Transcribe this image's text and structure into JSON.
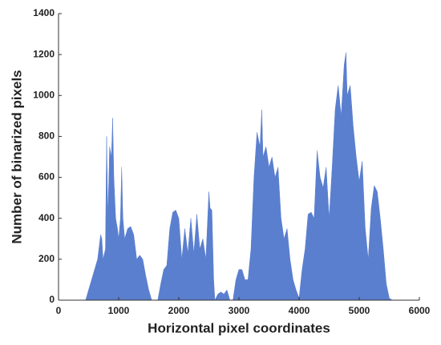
{
  "chart_data": {
    "type": "area",
    "xlabel": "Horizontal pixel coordinates",
    "ylabel": "Number of binarized pixels",
    "color": "#5b7fcf",
    "xlim": [
      0,
      6000
    ],
    "xticks": [
      0,
      1000,
      2000,
      3000,
      4000,
      5000,
      6000
    ],
    "ylim": [
      0,
      1400
    ],
    "yticks": [
      0,
      200,
      400,
      600,
      800,
      1000,
      1200,
      1400
    ],
    "x": [
      450,
      500,
      550,
      600,
      650,
      700,
      720,
      740,
      780,
      800,
      820,
      850,
      880,
      900,
      920,
      950,
      980,
      1000,
      1030,
      1050,
      1070,
      1100,
      1150,
      1200,
      1250,
      1300,
      1350,
      1400,
      1450,
      1500,
      1550,
      1650,
      1700,
      1750,
      1800,
      1850,
      1900,
      1950,
      2000,
      2050,
      2100,
      2150,
      2200,
      2250,
      2300,
      2350,
      2400,
      2450,
      2500,
      2520,
      2550,
      2580,
      2600,
      2650,
      2700,
      2750,
      2800,
      2850,
      2900,
      2950,
      3000,
      3050,
      3100,
      3150,
      3200,
      3250,
      3300,
      3350,
      3380,
      3400,
      3450,
      3500,
      3550,
      3600,
      3650,
      3700,
      3750,
      3800,
      3850,
      3900,
      3950,
      4000,
      4050,
      4100,
      4150,
      4200,
      4250,
      4300,
      4350,
      4400,
      4450,
      4500,
      4550,
      4600,
      4650,
      4700,
      4750,
      4780,
      4800,
      4850,
      4900,
      4950,
      5000,
      5050,
      5100,
      5150,
      5200,
      5250,
      5300,
      5350,
      5400,
      5450,
      5500,
      5550
    ],
    "values": [
      0,
      50,
      100,
      150,
      200,
      320,
      300,
      200,
      250,
      800,
      400,
      750,
      700,
      890,
      600,
      400,
      350,
      300,
      400,
      650,
      400,
      300,
      350,
      360,
      320,
      200,
      220,
      200,
      120,
      50,
      0,
      0,
      80,
      150,
      170,
      350,
      430,
      440,
      400,
      200,
      350,
      230,
      400,
      230,
      420,
      250,
      300,
      200,
      530,
      450,
      440,
      100,
      0,
      30,
      40,
      30,
      50,
      0,
      0,
      100,
      150,
      150,
      100,
      100,
      250,
      600,
      820,
      750,
      930,
      700,
      750,
      650,
      700,
      600,
      650,
      400,
      300,
      350,
      200,
      100,
      50,
      10,
      150,
      250,
      420,
      430,
      400,
      730,
      600,
      550,
      650,
      400,
      650,
      930,
      1050,
      900,
      1150,
      1210,
      1000,
      1050,
      850,
      700,
      580,
      680,
      350,
      200,
      450,
      560,
      530,
      400,
      250,
      80,
      10,
      0
    ]
  }
}
